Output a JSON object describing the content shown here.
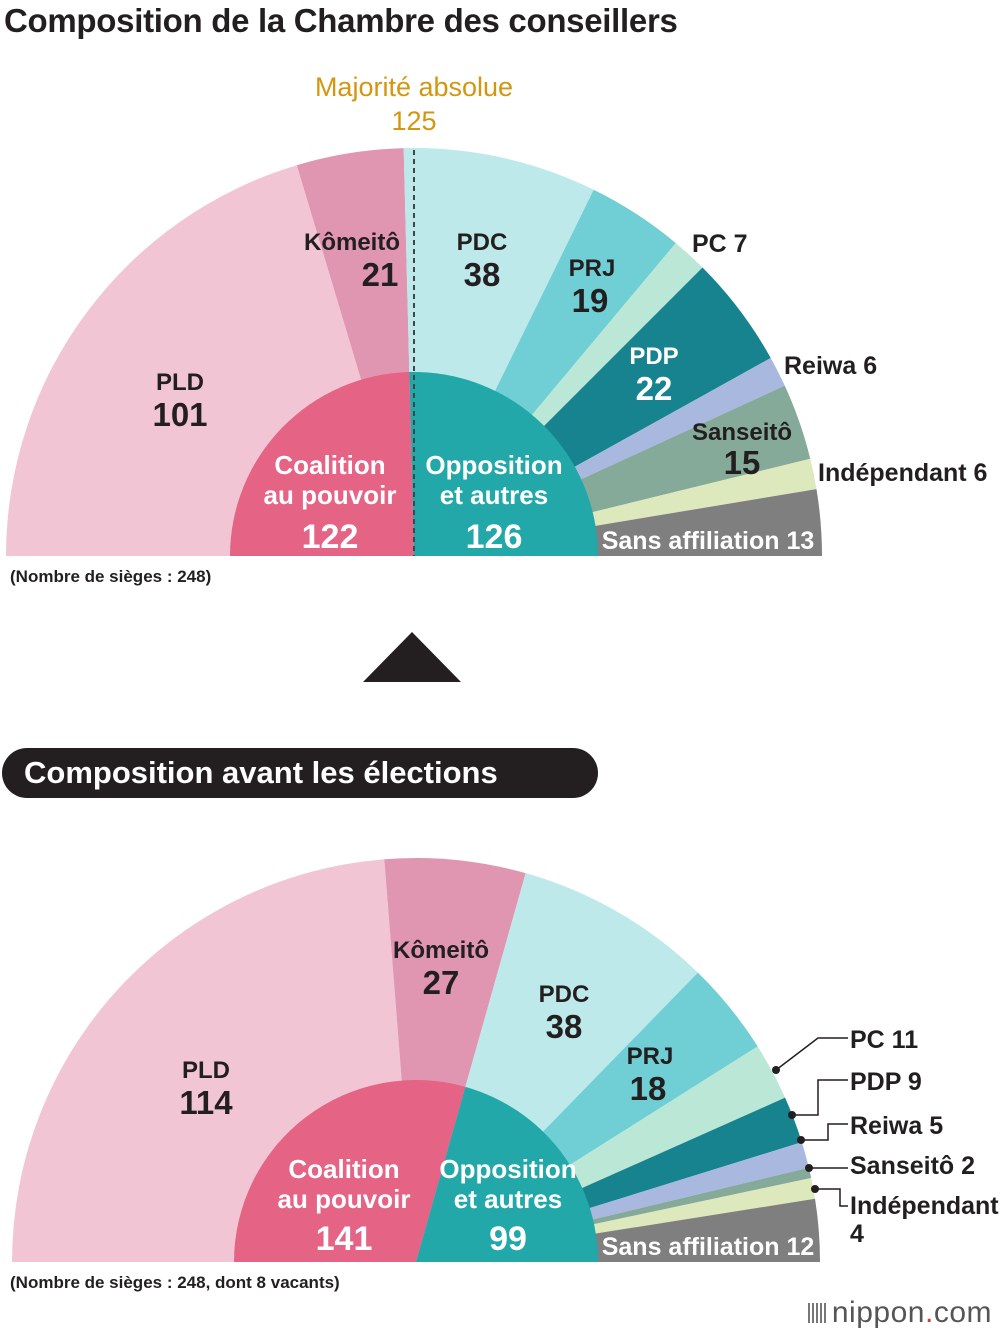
{
  "title": "Composition de la Chambre des conseillers",
  "subtitle": "Composition avant les élections",
  "brand": {
    "name": "nippon",
    "tld": "com"
  },
  "colors": {
    "PLD": "#f1c5d4",
    "Komeito": "#e096b1",
    "PDC": "#bee9ea",
    "PRJ": "#6fcfd4",
    "PC": "#bbe8d6",
    "PDP": "#17838f",
    "Reiwa": "#a9b8df",
    "Sanseito": "#86aa99",
    "Independant": "#dde8bd",
    "Sans": "#7f7f7f",
    "coalition": "#e56384",
    "opposition": "#22a8a8",
    "majority": "#d4960f"
  },
  "chart_data": [
    {
      "type": "pie",
      "shape": "half-donut",
      "total_seats": 248,
      "seats_label": "(Nombre de sièges : 248)",
      "majority": {
        "label": "Majorité absolue",
        "value": 125
      },
      "segments": [
        {
          "party": "PLD",
          "label": "PLD",
          "value": 101,
          "color_key": "PLD"
        },
        {
          "party": "Komeito",
          "label": "Kômeitô",
          "value": 21,
          "color_key": "Komeito"
        },
        {
          "party": "PDC",
          "label": "PDC",
          "value": 38,
          "color_key": "PDC"
        },
        {
          "party": "PRJ",
          "label": "PRJ",
          "value": 19,
          "color_key": "PRJ"
        },
        {
          "party": "PC",
          "label": "PC 7",
          "value": 7,
          "color_key": "PC"
        },
        {
          "party": "PDP",
          "label": "PDP",
          "value": 22,
          "color_key": "PDP"
        },
        {
          "party": "Reiwa",
          "label": "Reiwa 6",
          "value": 6,
          "color_key": "Reiwa"
        },
        {
          "party": "Sanseito",
          "label": "Sanseitô",
          "value": 15,
          "color_key": "Sanseito"
        },
        {
          "party": "Independant",
          "label": "Indépendant 6",
          "value": 6,
          "color_key": "Independant"
        },
        {
          "party": "Sans",
          "label": "Sans affiliation 13",
          "value": 13,
          "color_key": "Sans"
        }
      ],
      "blocs": [
        {
          "label_line1": "Coalition",
          "label_line2": "au pouvoir",
          "value": 122,
          "color_key": "coalition"
        },
        {
          "label_line1": "Opposition",
          "label_line2": "et autres",
          "value": 126,
          "color_key": "opposition"
        }
      ]
    },
    {
      "type": "pie",
      "shape": "half-donut",
      "total_seats": 248,
      "vacant": 8,
      "seats_label": "(Nombre de sièges : 248, dont 8 vacants)",
      "segments": [
        {
          "party": "PLD",
          "label": "PLD",
          "value": 114,
          "color_key": "PLD"
        },
        {
          "party": "Komeito",
          "label": "Kômeitô",
          "value": 27,
          "color_key": "Komeito"
        },
        {
          "party": "PDC",
          "label": "PDC",
          "value": 38,
          "color_key": "PDC"
        },
        {
          "party": "PRJ",
          "label": "PRJ",
          "value": 18,
          "color_key": "PRJ"
        },
        {
          "party": "PC",
          "label": "PC 11",
          "value": 11,
          "color_key": "PC"
        },
        {
          "party": "PDP",
          "label": "PDP 9",
          "value": 9,
          "color_key": "PDP"
        },
        {
          "party": "Reiwa",
          "label": "Reiwa 5",
          "value": 5,
          "color_key": "Reiwa"
        },
        {
          "party": "Sanseito",
          "label": "Sanseitô 2",
          "value": 2,
          "color_key": "Sanseito"
        },
        {
          "party": "Independant",
          "label": "Indépendant",
          "label2": "4",
          "value": 4,
          "color_key": "Independant"
        },
        {
          "party": "Sans",
          "label": "Sans affiliation 12",
          "value": 12,
          "color_key": "Sans"
        }
      ],
      "blocs": [
        {
          "label_line1": "Coalition",
          "label_line2": "au pouvoir",
          "value": 141,
          "color_key": "coalition"
        },
        {
          "label_line1": "Opposition",
          "label_line2": "et autres",
          "value": 99,
          "color_key": "opposition"
        }
      ]
    }
  ]
}
